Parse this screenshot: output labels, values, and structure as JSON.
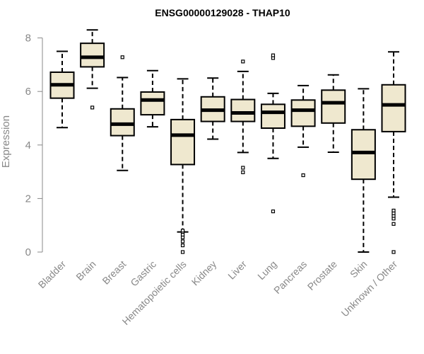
{
  "chart_data": {
    "type": "boxplot",
    "title": "ENSG00000129028 - THAP10",
    "xlabel": "",
    "ylabel": "Expression",
    "ylim": [
      0,
      8.3
    ],
    "yticks": [
      0,
      2,
      4,
      6,
      8
    ],
    "grid": false,
    "categories": [
      "Bladder",
      "Brain",
      "Breast",
      "Gastric",
      "Hematopoietic cells",
      "Kidney",
      "Liver",
      "Lung",
      "Pancreas",
      "Prostate",
      "Skin",
      "Unknown / Other"
    ],
    "boxes": [
      {
        "whisker_low": 4.65,
        "q1": 5.75,
        "median": 6.25,
        "q3": 6.72,
        "whisker_high": 7.5,
        "outliers": []
      },
      {
        "whisker_low": 6.12,
        "q1": 6.92,
        "median": 7.28,
        "q3": 7.8,
        "whisker_high": 8.3,
        "outliers": [
          5.4
        ]
      },
      {
        "whisker_low": 3.05,
        "q1": 4.35,
        "median": 4.78,
        "q3": 5.35,
        "whisker_high": 6.52,
        "outliers": [
          7.28
        ]
      },
      {
        "whisker_low": 4.68,
        "q1": 5.13,
        "median": 5.68,
        "q3": 5.98,
        "whisker_high": 6.78,
        "outliers": []
      },
      {
        "whisker_low": 0.75,
        "q1": 3.27,
        "median": 4.37,
        "q3": 4.95,
        "whisker_high": 6.47,
        "outliers": [
          0.0,
          0.25,
          0.4,
          0.55,
          0.65,
          0.75,
          0.8
        ]
      },
      {
        "whisker_low": 4.22,
        "q1": 4.88,
        "median": 5.3,
        "q3": 5.8,
        "whisker_high": 6.5,
        "outliers": []
      },
      {
        "whisker_low": 3.72,
        "q1": 4.88,
        "median": 5.2,
        "q3": 5.7,
        "whisker_high": 6.75,
        "outliers": [
          2.98,
          3.15,
          7.12
        ]
      },
      {
        "whisker_low": 3.5,
        "q1": 4.63,
        "median": 5.22,
        "q3": 5.52,
        "whisker_high": 5.93,
        "outliers": [
          1.52,
          7.25,
          7.35
        ]
      },
      {
        "whisker_low": 3.92,
        "q1": 4.7,
        "median": 5.3,
        "q3": 5.68,
        "whisker_high": 6.22,
        "outliers": [
          2.87
        ]
      },
      {
        "whisker_low": 3.73,
        "q1": 4.82,
        "median": 5.58,
        "q3": 6.05,
        "whisker_high": 6.62,
        "outliers": []
      },
      {
        "whisker_low": 0.0,
        "q1": 2.72,
        "median": 3.72,
        "q3": 4.57,
        "whisker_high": 6.1,
        "outliers": []
      },
      {
        "whisker_low": 2.05,
        "q1": 4.5,
        "median": 5.5,
        "q3": 6.25,
        "whisker_high": 7.48,
        "outliers": [
          0.0,
          1.05,
          1.25,
          1.35,
          1.45,
          1.55
        ]
      }
    ],
    "colors": {
      "box_fill": "#efe8cf",
      "box_stroke": "#000000",
      "axis": "#888888"
    }
  }
}
